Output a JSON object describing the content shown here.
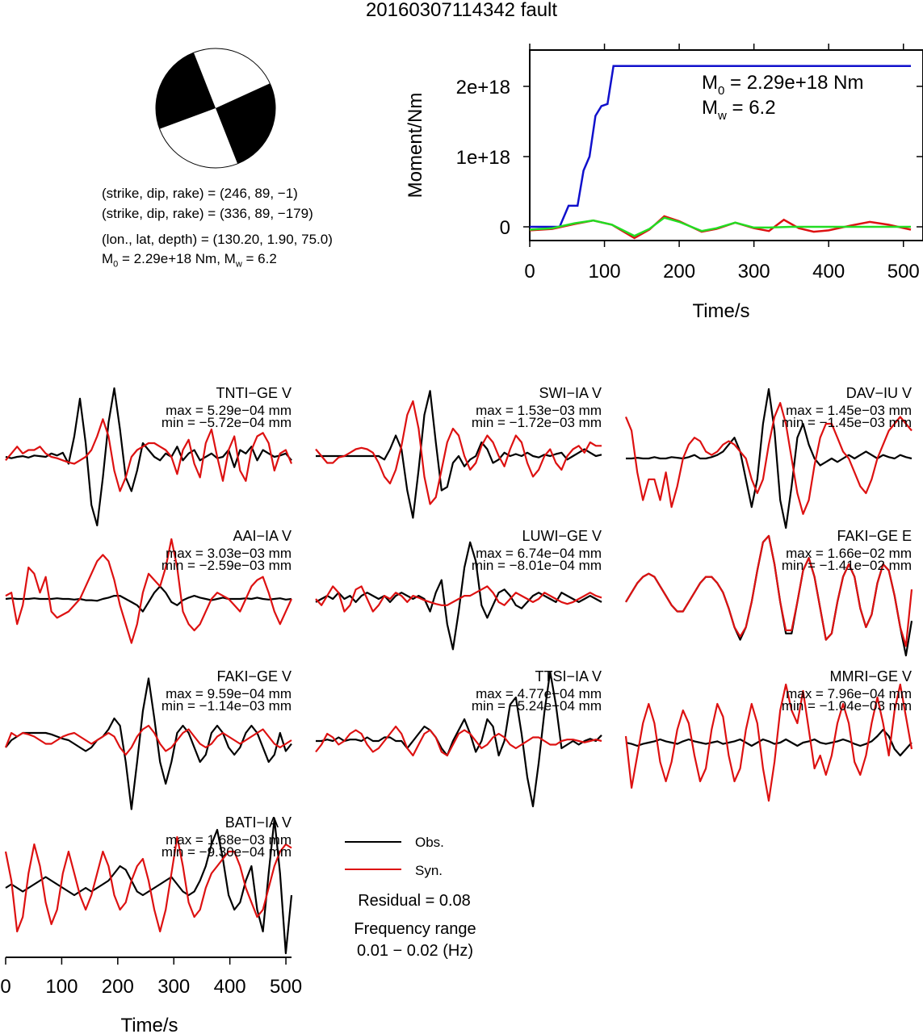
{
  "title": "20160307114342 fault",
  "focal": {
    "line1": "(strike, dip, rake) = (246, 89, −1)",
    "line2": "(strike, dip, rake) = (336, 89, −179)",
    "line3": "(lon., lat, depth) = (130.20, 1.90, 75.0)",
    "line4_m0": "M",
    "line4_m0_sub": "0",
    "line4_rest": " = 2.29e+18 Nm, M",
    "line4_mw_sub": "w",
    "line4_end": " = 6.2"
  },
  "moment_plot": {
    "ylabel": "Moment/Nm",
    "xlabel": "Time/s",
    "annot_m0": "M",
    "annot_m0_sub": "0",
    "annot_m0_val": " = 2.29e+18 Nm",
    "annot_mw": "M",
    "annot_mw_sub": "w",
    "annot_mw_val": " = 6.2"
  },
  "waveform_axis": {
    "xlabel": "Time/s"
  },
  "legend": {
    "obs": "Obs.",
    "syn": "Syn.",
    "residual": "Residual = 0.08",
    "freq_label": "Frequency range",
    "freq_value": "0.01 − 0.02 (Hz)"
  },
  "colors": {
    "obs": "#000000",
    "syn": "#dd1111",
    "cumulative": "#1010cc",
    "moment_rate_green": "#22dd22"
  },
  "chart_data": [
    {
      "type": "line",
      "xlabel": "Time/s",
      "ylabel": "Moment/Nm",
      "xlim": [
        0,
        510
      ],
      "ylim": [
        -2e+17,
        2.6e+18
      ],
      "x_ticks": [
        0,
        100,
        200,
        300,
        400,
        500
      ],
      "y_ticks": [
        0,
        1e+18,
        2e+18
      ],
      "y_tick_labels": [
        "0",
        "1e+18",
        "2e+18"
      ],
      "series": [
        {
          "name": "cumulative moment",
          "color": "#1010cc",
          "x": [
            0,
            40,
            52,
            64,
            72,
            80,
            88,
            96,
            104,
            112,
            510
          ],
          "y": [
            0,
            0,
            3e+17,
            3e+17,
            8e+17,
            1e+18,
            1.58e+18,
            1.72e+18,
            1.75e+18,
            2.29e+18,
            2.29e+18
          ]
        },
        {
          "name": "moment rate (red)",
          "color": "#dd1111",
          "x": [
            0,
            30,
            60,
            85,
            110,
            140,
            160,
            180,
            200,
            230,
            250,
            275,
            300,
            320,
            340,
            360,
            380,
            400,
            430,
            455,
            480,
            510
          ],
          "y": [
            -5e+16,
            -3e+16,
            4e+16,
            9e+16,
            3e+16,
            -1.6e+17,
            -4e+16,
            1.5e+17,
            8e+16,
            -7e+16,
            -3e+16,
            6e+16,
            -2e+16,
            -6e+16,
            1e+17,
            -2e+16,
            -7e+16,
            -5e+16,
            2e+16,
            7e+16,
            3e+16,
            -4e+16
          ]
        },
        {
          "name": "moment rate (green)",
          "color": "#22dd22",
          "x": [
            0,
            30,
            60,
            85,
            110,
            140,
            160,
            180,
            200,
            230,
            250,
            275,
            300,
            320,
            350,
            400,
            450,
            510
          ],
          "y": [
            -4e+16,
            -2e+16,
            5e+16,
            9e+16,
            3e+16,
            -1.3e+17,
            -3e+16,
            1.3e+17,
            7e+16,
            -6e+16,
            -2e+16,
            6e+16,
            -1e+16,
            -1e+16,
            0,
            0,
            0,
            0
          ]
        }
      ]
    },
    {
      "type": "line",
      "title": "TNTI−GE V",
      "max": "max = 5.29e−04 mm",
      "min": "min = −5.72e−04 mm",
      "xlim": [
        0,
        510
      ],
      "obs": [
        0,
        -0.02,
        0,
        0.01,
        -0.01,
        0.02,
        0.01,
        0,
        0.05,
        0.02,
        0.06,
        -0.1,
        0.3,
        0.85,
        0.2,
        -0.7,
        -1,
        -0.3,
        0.5,
        1,
        0.4,
        -0.3,
        -0.5,
        -0.2,
        0.2,
        0.1,
        0,
        -0.05,
        0.05,
        0,
        0.15,
        -0.05,
        0.05,
        0.1,
        -0.05,
        0,
        0.05,
        -0.02,
        0,
        0.1,
        -0.15,
        0.1,
        0.05,
        0.15,
        -0.05,
        0.1,
        0.05,
        0,
        0.02,
        0.05,
        -0.05
      ],
      "syn": [
        -0.05,
        0.05,
        0.15,
        0.05,
        0.1,
        0.1,
        0.15,
        0.05,
        0,
        -0.02,
        -0.05,
        -0.08,
        -0.1,
        -0.05,
        0,
        0.1,
        0.3,
        0.55,
        0.3,
        -0.2,
        -0.5,
        -0.3,
        0,
        0.1,
        0.15,
        0.2,
        0.2,
        0.15,
        0.1,
        0,
        -0.25,
        0.1,
        0.25,
        -0.1,
        -0.3,
        0.2,
        0.4,
        0,
        -0.35,
        0.1,
        0.3,
        -0.2,
        -0.35,
        0.1,
        0.3,
        0.35,
        0.2,
        -0.2,
        0.05,
        0.1,
        -0.1
      ]
    },
    {
      "type": "line",
      "title": "SWI−IA V",
      "max": "max = 1.53e−03 mm",
      "min": "min = −1.72e−03 mm",
      "xlim": [
        0,
        510
      ],
      "obs": [
        0,
        0,
        0,
        0,
        0,
        0,
        0,
        0,
        0,
        0,
        0,
        0,
        -0.05,
        0.1,
        0.3,
        0.1,
        -0.5,
        -0.9,
        -0.2,
        0.6,
        0.95,
        0.2,
        -0.5,
        -0.45,
        -0.1,
        0,
        -0.15,
        -0.05,
        0,
        0.2,
        0.1,
        -0.1,
        -0.05,
        0.05,
        0,
        0.03,
        0,
        0.05,
        0,
        -0.02,
        0.02,
        0,
        0.03,
        0.05,
        -0.05,
        0,
        0.05,
        0.1,
        0.05,
        0,
        0.02
      ],
      "syn": [
        0.1,
        0,
        -0.1,
        -0.1,
        -0.02,
        0,
        0.05,
        0.1,
        0.12,
        0.1,
        0.05,
        -0.1,
        -0.3,
        -0.4,
        -0.2,
        0.15,
        0.6,
        0.8,
        0.4,
        -0.3,
        -0.7,
        -0.6,
        -0.2,
        0.2,
        0.4,
        0.3,
        0,
        -0.2,
        -0.1,
        0.15,
        0.3,
        0.2,
        0,
        -0.15,
        0.1,
        0.3,
        0.2,
        -0.1,
        -0.3,
        -0.2,
        0,
        0.1,
        -0.1,
        -0.2,
        0,
        0.1,
        0.15,
        0.05,
        0.2,
        0.15,
        0.15
      ]
    },
    {
      "type": "line",
      "title": "DAV−IU V",
      "max": "max = 1.45e−03 mm",
      "min": "min = −1.45e−03 mm",
      "xlim": [
        0,
        510
      ],
      "obs": [
        0,
        0,
        0.01,
        0,
        0,
        0.02,
        0,
        0,
        0.02,
        0.01,
        0,
        0.02,
        0.05,
        0,
        0,
        0.02,
        0.05,
        0.1,
        0.2,
        0.3,
        0.1,
        -0.3,
        -0.7,
        -0.3,
        0.5,
        1,
        0.4,
        -0.6,
        -1,
        -0.4,
        0.3,
        0.5,
        0.2,
        0,
        -0.1,
        -0.05,
        0,
        -0.05,
        0,
        0.05,
        0,
        0.05,
        0.1,
        0.05,
        0,
        0.05,
        0.02,
        0,
        0.05,
        0.02,
        0
      ],
      "syn": [
        0.6,
        0.4,
        -0.2,
        -0.6,
        -0.3,
        -0.3,
        -0.6,
        -0.2,
        -0.7,
        -0.4,
        0,
        0.2,
        0.3,
        0.25,
        0.1,
        0.05,
        0.1,
        0.2,
        0.25,
        0.2,
        0.1,
        0,
        -0.3,
        -0.5,
        -0.3,
        0.2,
        0.6,
        0.8,
        0.5,
        0,
        -0.5,
        -0.8,
        -0.6,
        -0.1,
        0.3,
        0.5,
        0.5,
        0.3,
        0.1,
        0,
        -0.2,
        -0.4,
        -0.5,
        -0.3,
        0,
        0.2,
        0.4,
        0.5,
        0.6,
        0.5,
        0.4
      ]
    },
    {
      "type": "line",
      "title": "AAI−IA V",
      "max": "max = 3.03e−03 mm",
      "min": "min = −2.59e−03 mm",
      "xlim": [
        0,
        510
      ],
      "obs": [
        0,
        0.01,
        0,
        0,
        0,
        0.01,
        0,
        0,
        0,
        0.01,
        0,
        0,
        -0.01,
        0,
        -0.02,
        -0.02,
        -0.03,
        0,
        0.02,
        0.05,
        0.05,
        0,
        -0.05,
        -0.1,
        -0.2,
        -0.05,
        0.1,
        0.2,
        0.1,
        -0.05,
        -0.1,
        -0.02,
        0.02,
        0.05,
        0.02,
        0,
        -0.02,
        0,
        0.02,
        0,
        0,
        0,
        0.01,
        0,
        0.02,
        0,
        -0.01,
        0,
        0.01,
        -0.01,
        0
      ],
      "syn": [
        0.05,
        0.1,
        -0.4,
        -0.1,
        0.5,
        0.4,
        0.1,
        0.35,
        -0.2,
        -0.3,
        -0.25,
        -0.2,
        -0.1,
        0,
        0.2,
        0.4,
        0.6,
        0.7,
        0.6,
        0.3,
        -0.1,
        -0.4,
        -0.7,
        -0.4,
        0.1,
        0.4,
        0.3,
        0.2,
        0.5,
        0.95,
        0.5,
        -0.2,
        -0.4,
        -0.5,
        -0.4,
        -0.2,
        0,
        0.1,
        0.05,
        0,
        -0.1,
        -0.2,
        0,
        0.2,
        0.3,
        0.35,
        0.1,
        -0.2,
        -0.4,
        -0.2,
        0
      ]
    },
    {
      "type": "line",
      "title": "LUWI−GE V",
      "max": "max = 6.74e−04 mm",
      "min": "min = −8.01e−04 mm",
      "xlim": [
        0,
        510
      ],
      "obs": [
        -0.05,
        0,
        0.05,
        0,
        0.1,
        0,
        0.05,
        -0.05,
        0.05,
        0.1,
        0.05,
        0,
        0.05,
        -0.05,
        0.05,
        0.1,
        0.05,
        0,
        0.05,
        0,
        -0.2,
        0.1,
        0.3,
        -0.4,
        -0.8,
        -0.2,
        0.5,
        0.9,
        0.6,
        -0.1,
        -0.3,
        -0.1,
        0.1,
        0.15,
        0.05,
        -0.1,
        -0.15,
        -0.05,
        0.05,
        0.1,
        0.05,
        0,
        -0.05,
        0.1,
        0.05,
        0,
        -0.05,
        0,
        0.05,
        0,
        -0.05
      ],
      "syn": [
        0,
        -0.1,
        0.05,
        0.2,
        0.1,
        -0.2,
        -0.1,
        0.15,
        0.2,
        0,
        -0.2,
        -0.1,
        0.05,
        0,
        0.1,
        0.05,
        -0.05,
        0.05,
        0.02,
        -0.02,
        -0.05,
        -0.08,
        -0.1,
        -0.1,
        -0.05,
        0,
        0.05,
        0.05,
        0.1,
        0.15,
        0.2,
        0.1,
        -0.05,
        -0.1,
        0,
        0.1,
        0.05,
        0,
        -0.05,
        0,
        0.1,
        0.05,
        0,
        -0.05,
        -0.08,
        -0.05,
        0,
        0.05,
        0.1,
        0.05,
        0.02
      ]
    },
    {
      "type": "line",
      "title": "FAKI−GE E",
      "max": "max = 1.66e−02 mm",
      "min": "min = −1.41e−02 mm",
      "xlim": [
        0,
        510
      ],
      "obs": [
        -0.1,
        0.05,
        0.2,
        0.3,
        0.35,
        0.3,
        0.15,
        0,
        -0.15,
        -0.25,
        -0.25,
        -0.1,
        0.05,
        0.2,
        0.3,
        0.3,
        0.2,
        0.05,
        -0.2,
        -0.5,
        -0.7,
        -0.5,
        -0.1,
        0.4,
        0.85,
        0.95,
        0.5,
        -0.1,
        -0.6,
        -0.6,
        -0.1,
        0.4,
        0.6,
        0.3,
        -0.2,
        -0.7,
        -0.6,
        -0.1,
        0.3,
        0.5,
        0.3,
        -0.2,
        -0.5,
        -0.3,
        0.2,
        0.5,
        0.4,
        0,
        -0.5,
        -0.95,
        -0.4
      ],
      "syn": [
        -0.1,
        0.05,
        0.2,
        0.3,
        0.35,
        0.3,
        0.15,
        0,
        -0.15,
        -0.25,
        -0.25,
        -0.1,
        0.05,
        0.2,
        0.3,
        0.3,
        0.2,
        0.05,
        -0.2,
        -0.5,
        -0.65,
        -0.5,
        -0.1,
        0.4,
        0.85,
        0.95,
        0.5,
        -0.1,
        -0.55,
        -0.55,
        -0.1,
        0.4,
        0.6,
        0.3,
        -0.2,
        -0.7,
        -0.6,
        -0.1,
        0.3,
        0.5,
        0.3,
        -0.2,
        -0.5,
        -0.3,
        0.2,
        0.5,
        0.4,
        0,
        -0.5,
        -0.8,
        0.1
      ]
    },
    {
      "type": "line",
      "title": "FAKI−GE V",
      "max": "max = 9.59e−04 mm",
      "min": "min = −1.14e−03 mm",
      "xlim": [
        0,
        510
      ],
      "obs": [
        -0.1,
        0,
        0.05,
        0.1,
        0.1,
        0.1,
        0.1,
        0.1,
        0.08,
        0.05,
        0.02,
        0,
        -0.05,
        -0.1,
        -0.15,
        -0.1,
        0,
        0.05,
        0.15,
        0.3,
        0.2,
        -0.3,
        -0.95,
        -0.3,
        0.4,
        0.85,
        0.3,
        -0.3,
        -0.6,
        -0.3,
        0.1,
        0.2,
        0.1,
        -0.1,
        -0.3,
        -0.2,
        0.1,
        0.2,
        0.1,
        -0.1,
        -0.2,
        -0.1,
        0.1,
        0.2,
        0.1,
        -0.1,
        -0.3,
        -0.2,
        0.1,
        -0.15,
        -0.05
      ],
      "syn": [
        -0.1,
        0.1,
        0.05,
        0.1,
        0.08,
        0.05,
        0,
        -0.05,
        -0.05,
        0,
        0.05,
        0.08,
        0.1,
        0.05,
        0,
        -0.05,
        0,
        0.05,
        0.1,
        0.05,
        -0.1,
        -0.2,
        -0.1,
        0.05,
        0.15,
        0.2,
        0.1,
        -0.05,
        -0.15,
        -0.1,
        0,
        0.1,
        0.15,
        0.05,
        -0.05,
        -0.1,
        -0.05,
        0.05,
        0.1,
        0.05,
        0,
        -0.05,
        0,
        0.05,
        0.1,
        0.15,
        0.05,
        -0.05,
        -0.1,
        -0.05,
        0
      ]
    },
    {
      "type": "line",
      "title": "TTSI−IA V",
      "max": "max = 4.77e−04 mm",
      "min": "min = −5.24e−04 mm",
      "xlim": [
        0,
        510
      ],
      "obs": [
        0,
        0,
        0.02,
        0,
        0.05,
        0,
        0.02,
        0.02,
        0,
        0.05,
        0,
        0,
        0.05,
        0.05,
        0,
        0,
        -0.1,
        0,
        0.1,
        0.2,
        0.15,
        0.05,
        -0.1,
        -0.2,
        0,
        0.15,
        0.3,
        0.1,
        -0.15,
        0,
        0.3,
        0.2,
        -0.2,
        0,
        0.5,
        0.6,
        0.1,
        -0.5,
        -0.9,
        -0.3,
        0.4,
        0.95,
        0.5,
        -0.1,
        -0.05,
        0,
        -0.05,
        0,
        0.03,
        0,
        0.08
      ],
      "syn": [
        -0.15,
        -0.05,
        0.1,
        0.05,
        -0.05,
        0,
        0.1,
        0.15,
        0.1,
        -0.05,
        -0.15,
        -0.1,
        0,
        0.1,
        0.2,
        0.1,
        -0.1,
        -0.2,
        -0.05,
        0.1,
        0.15,
        0.05,
        -0.15,
        -0.2,
        -0.05,
        0.1,
        0.15,
        0.1,
        0,
        -0.1,
        -0.05,
        0.05,
        0.1,
        0.05,
        -0.05,
        -0.1,
        -0.05,
        0,
        0.05,
        0.05,
        0,
        -0.05,
        -0.05,
        0,
        0.02,
        0.02,
        0,
        -0.02,
        0,
        0.02,
        0
      ]
    },
    {
      "type": "line",
      "title": "MMRI−GE V",
      "max": "max = 7.96e−04 mm",
      "min": "min = −1.04e−03 mm",
      "xlim": [
        0,
        510
      ],
      "obs": [
        0,
        -0.02,
        -0.05,
        -0.02,
        0,
        0.02,
        0.05,
        0.02,
        0,
        -0.02,
        0.02,
        0.05,
        0.02,
        0,
        -0.02,
        0,
        0.02,
        -0.02,
        0,
        0.02,
        0.05,
        0,
        -0.05,
        0,
        0.05,
        0.02,
        -0.02,
        0,
        0.05,
        0,
        -0.05,
        0,
        0.02,
        0.05,
        0,
        -0.02,
        0,
        0.02,
        0.05,
        0.02,
        -0.02,
        -0.05,
        -0.02,
        0.02,
        0.1,
        0.2,
        0.1,
        -0.1,
        -0.2,
        -0.1,
        0
      ],
      "syn": [
        0.1,
        -0.7,
        -0.2,
        0.3,
        0.6,
        0.3,
        -0.3,
        -0.6,
        -0.3,
        0.2,
        0.5,
        0.3,
        -0.2,
        -0.6,
        -0.4,
        0.2,
        0.6,
        0.4,
        -0.2,
        -0.6,
        -0.4,
        0.2,
        0.6,
        0.3,
        -0.4,
        -0.9,
        -0.3,
        0.5,
        0.9,
        0.5,
        0.3,
        0.8,
        0.2,
        -0.4,
        -0.2,
        -0.5,
        -0.2,
        0.3,
        0.6,
        0.3,
        -0.3,
        -0.5,
        -0.2,
        0.3,
        0.7,
        0.3,
        -0.2,
        0.5,
        0.9,
        0.4,
        -0.1
      ]
    },
    {
      "type": "line",
      "title": "BATI−IA V",
      "max": "max = 1.68e−03 mm",
      "min": "min = −9.30e−04 mm",
      "xlim": [
        0,
        510
      ],
      "obs": [
        0,
        0.05,
        0,
        -0.05,
        0,
        0.05,
        0.1,
        0.15,
        0.1,
        0.05,
        0,
        -0.05,
        -0.1,
        -0.05,
        0,
        -0.05,
        0,
        0.05,
        0.1,
        0.2,
        0.3,
        0.25,
        0.1,
        -0.05,
        -0.1,
        -0.05,
        0,
        0.05,
        0.1,
        0.15,
        0.05,
        -0.05,
        -0.1,
        -0.05,
        0.1,
        0.3,
        0.6,
        0.8,
        0.4,
        -0.1,
        -0.3,
        -0.2,
        0.1,
        0.3,
        -0.3,
        -0.6,
        0.2,
        0.95,
        0.2,
        -0.9,
        -0.1
      ],
      "syn": [
        0.5,
        0.1,
        -0.6,
        -0.4,
        0.2,
        0.6,
        0.3,
        -0.2,
        -0.5,
        -0.3,
        0.2,
        0.5,
        0.2,
        -0.1,
        -0.3,
        -0.1,
        0.2,
        0.5,
        0.3,
        -0.1,
        -0.3,
        -0.2,
        0.1,
        0.3,
        0.4,
        0.1,
        -0.3,
        -0.6,
        -0.3,
        0.2,
        0.7,
        0.3,
        -0.2,
        -0.4,
        -0.3,
        0,
        0.2,
        0.3,
        0.4,
        0.5,
        0.5,
        0.3,
        0,
        -0.2,
        -0.4,
        -0.3,
        0,
        0.3,
        0.5,
        0.6,
        0.55
      ]
    }
  ]
}
